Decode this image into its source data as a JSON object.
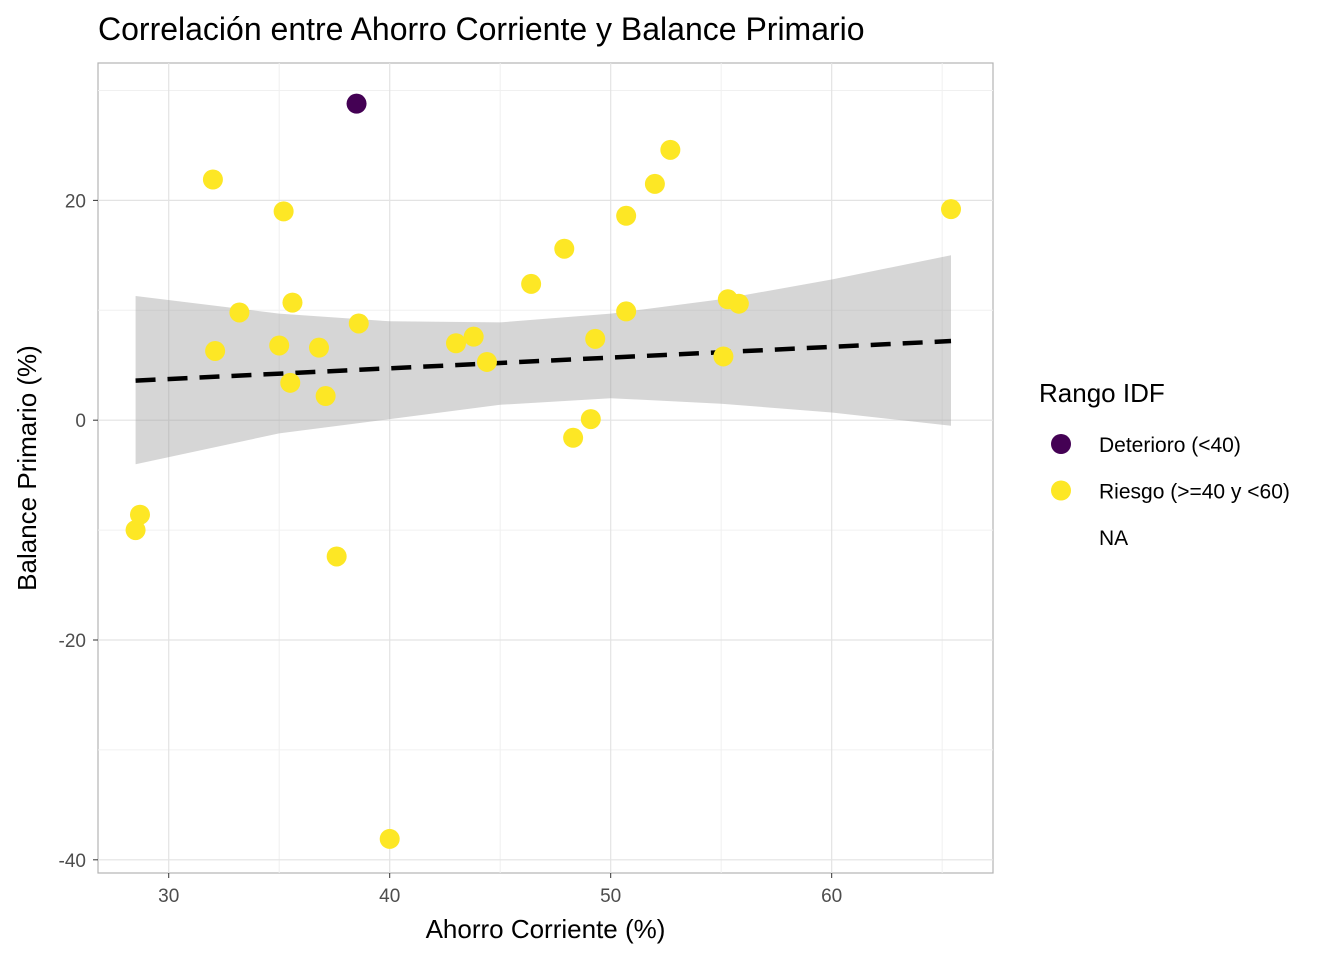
{
  "chart_data": {
    "type": "scatter",
    "title": "Correlación entre Ahorro Corriente y Balance Primario",
    "xlabel": "Ahorro Corriente (%)",
    "ylabel": "Balance Primario (%)",
    "xlim": [
      26.8,
      67.3
    ],
    "ylim": [
      -41.2,
      32.5
    ],
    "x_ticks": [
      30,
      40,
      50,
      60
    ],
    "y_ticks": [
      -40,
      -20,
      0,
      20
    ],
    "grid": true,
    "legend": {
      "title": "Rango IDF",
      "position": "right",
      "entries": [
        {
          "label": "Deterioro (<40)",
          "color": "#440154"
        },
        {
          "label": "Riesgo (>=40 y <60)",
          "color": "#FDE725"
        },
        {
          "label": "NA",
          "color": null
        }
      ]
    },
    "series": [
      {
        "name": "Deterioro (<40)",
        "color": "#440154",
        "points": [
          [
            38.5,
            28.8
          ]
        ]
      },
      {
        "name": "Riesgo (>=40 y <60)",
        "color": "#FDE725",
        "points": [
          [
            28.5,
            -10.0
          ],
          [
            28.7,
            -8.6
          ],
          [
            32.0,
            21.9
          ],
          [
            32.1,
            6.3
          ],
          [
            33.2,
            9.8
          ],
          [
            35.0,
            6.8
          ],
          [
            35.2,
            19.0
          ],
          [
            35.5,
            3.4
          ],
          [
            35.6,
            10.7
          ],
          [
            36.8,
            6.6
          ],
          [
            37.1,
            2.2
          ],
          [
            37.6,
            -12.4
          ],
          [
            38.6,
            8.8
          ],
          [
            40.0,
            -38.1
          ],
          [
            43.0,
            7.0
          ],
          [
            43.8,
            7.6
          ],
          [
            44.4,
            5.3
          ],
          [
            46.4,
            12.4
          ],
          [
            47.9,
            15.6
          ],
          [
            48.3,
            -1.6
          ],
          [
            49.1,
            0.1
          ],
          [
            49.3,
            7.4
          ],
          [
            50.7,
            9.9
          ],
          [
            50.7,
            18.6
          ],
          [
            52.0,
            21.5
          ],
          [
            52.7,
            24.6
          ],
          [
            55.1,
            5.8
          ],
          [
            55.3,
            11.0
          ],
          [
            55.8,
            10.6
          ],
          [
            65.4,
            19.2
          ]
        ]
      }
    ],
    "trend": {
      "style": "dashed",
      "color": "#000000",
      "x": [
        28.5,
        65.4
      ],
      "y": [
        3.6,
        7.2
      ],
      "confidence_band": {
        "fill": "#999999",
        "x": [
          28.5,
          35.0,
          40.0,
          45.0,
          50.0,
          55.0,
          60.0,
          65.4
        ],
        "lower": [
          -4.0,
          -1.2,
          0.1,
          1.4,
          2.0,
          1.5,
          0.7,
          -0.5
        ],
        "upper": [
          11.3,
          9.7,
          9.0,
          8.9,
          9.7,
          11.0,
          12.8,
          15.0
        ]
      }
    }
  }
}
